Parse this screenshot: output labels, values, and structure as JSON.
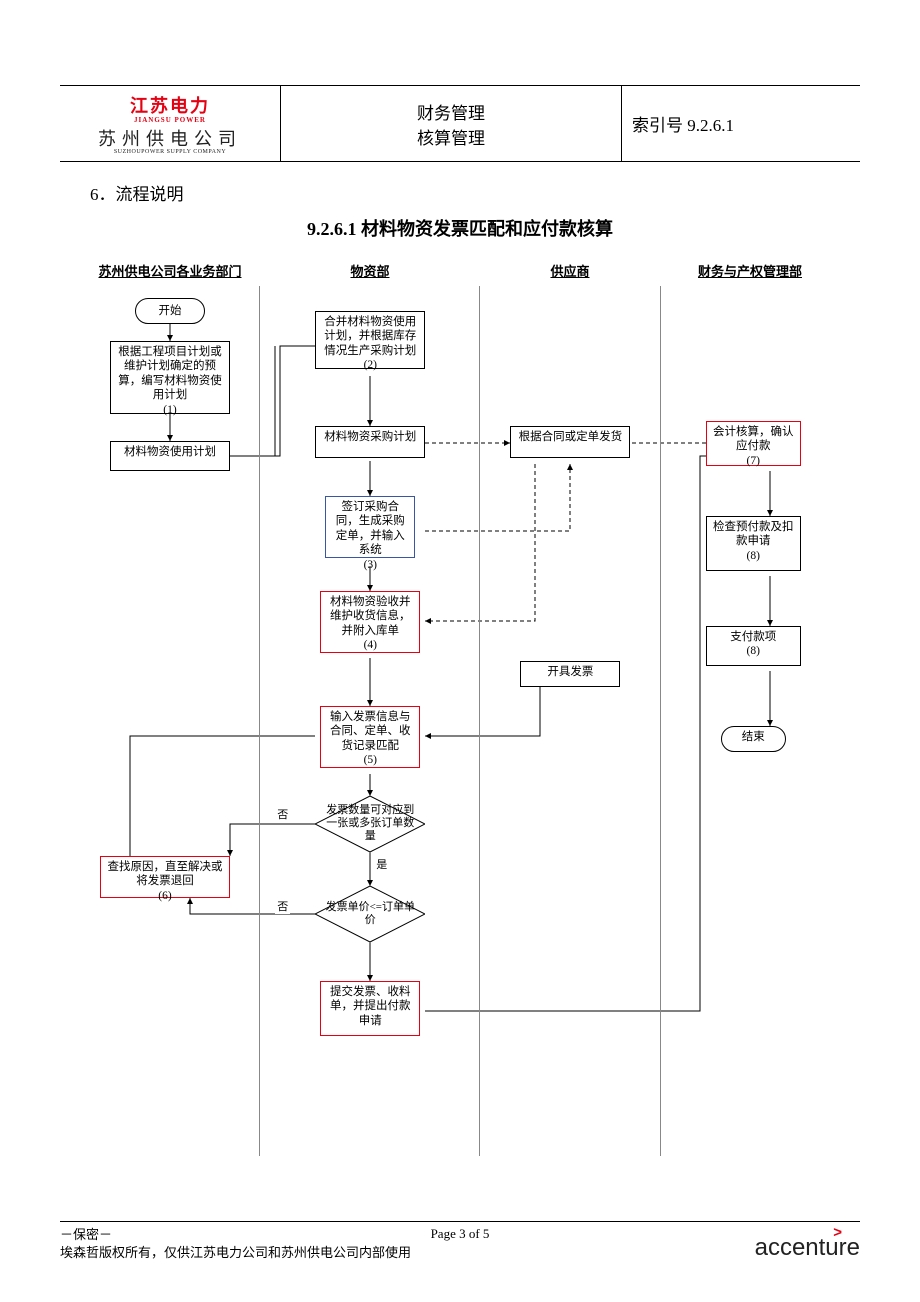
{
  "header": {
    "logo_top": "江苏电力",
    "logo_top_sub": "JIANGSU POWER",
    "logo_bottom": "苏州供电公司",
    "logo_bottom_sub": "SUZHOUPOWER SUPPLY COMPANY",
    "mid_line1": "财务管理",
    "mid_line2": "核算管理",
    "right_label": "索引号 9.2.6.1"
  },
  "section_number": "6．流程说明",
  "doc_title": "9.2.6.1 材料物资发票匹配和应付款核算",
  "lanes": {
    "lane1": "苏州供电公司各业务部门",
    "lane2": "物资部",
    "lane3": "供应商",
    "lane4": "财务与产权管理部"
  },
  "nodes": {
    "start": "开始",
    "n1": "根据工程项目计划或维护计划确定的预算，编写材料物资使用计划\n(1)",
    "n1b": "材料物资使用计划",
    "n2": "合并材料物资使用计划，并根据库存情况生产采购计划\n(2)",
    "n2b": "材料物资采购计划",
    "n3": "签订采购合同，生成采购定单，并输入系统\n(3)",
    "n4": "材料物资验收并维护收货信息，并附入库单\n(4)",
    "n5": "输入发票信息与合同、定单、收货记录匹配\n(5)",
    "n6": "查找原因，直至解决或将发票退回\n(6)",
    "d1": "发票数量可对应到一张或多张订单数量",
    "d2": "发票单价<=订单单价",
    "nsubmit": "提交发票、收料单，并提出付款申请",
    "supplier_ship": "根据合同或定单发货",
    "supplier_invoice": "开具发票",
    "n7": "会计核算，确认应付款\n(7)",
    "n8": "检查预付款及扣款申请\n(8)",
    "n8b": "支付款项\n(8)",
    "end": "结束"
  },
  "edge_labels": {
    "d1_no": "否",
    "d1_yes": "是",
    "d2_no": "否"
  },
  "footer": {
    "confidential": "－保密－",
    "copyright": "埃森哲版权所有，仅供江苏电力公司和苏州供电公司内部使用",
    "page": "Page 3 of 5",
    "brand": "accenture"
  },
  "colors": {
    "red": "#e50012",
    "blue": "#3956a5",
    "black": "#000000",
    "lane_border": "#888888"
  }
}
